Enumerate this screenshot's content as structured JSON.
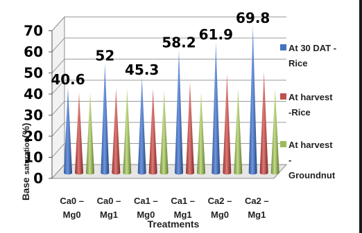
{
  "chart_data": {
    "type": "bar",
    "style": "3d-cone",
    "categories": [
      [
        "Ca0 –",
        "Mg0"
      ],
      [
        "Ca0 –",
        "Mg1"
      ],
      [
        "Ca1 –",
        "Mg0"
      ],
      [
        "Ca1 –",
        "Mg1"
      ],
      [
        "Ca2 –",
        "Mg0"
      ],
      [
        "Ca2 –",
        "Mg1"
      ]
    ],
    "series": [
      {
        "name": [
          "At 30 DAT -",
          "Rice"
        ],
        "color": "#4472c4",
        "values": [
          40.6,
          52,
          45.3,
          58.2,
          61.9,
          69.8
        ]
      },
      {
        "name": [
          "At harvest",
          "-Rice"
        ],
        "color": "#c0504d",
        "values": [
          38,
          40,
          40,
          43,
          47,
          48
        ]
      },
      {
        "name": [
          "At harvest",
          "-",
          "Groundnut"
        ],
        "color": "#9bbb59",
        "values": [
          38,
          40,
          39,
          38,
          40,
          40
        ]
      }
    ],
    "data_labels": [
      "40.6",
      "52",
      "45.3",
      "58.2",
      "61.9",
      "69.8"
    ],
    "ylabel_parts": [
      "Base",
      "saturation",
      "(%)"
    ],
    "xlabel": "Treatments",
    "yticks": [
      "0",
      "10",
      "20",
      "30",
      "40",
      "50",
      "60",
      "70"
    ],
    "ylim": [
      0,
      70
    ],
    "grid": true,
    "legend": "right"
  }
}
